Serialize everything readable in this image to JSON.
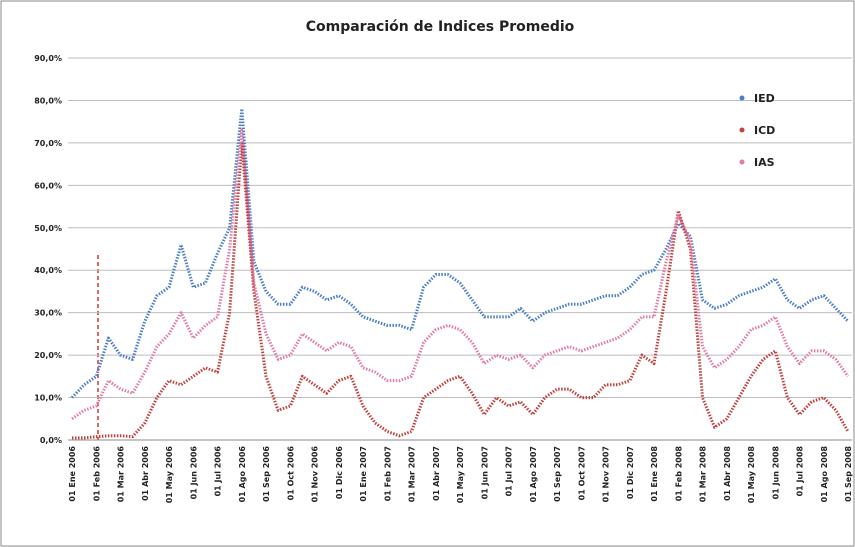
{
  "chart_data": {
    "type": "line",
    "title": "Comparación de Indices Promedio",
    "categories": [
      "01 Ene 2006",
      null,
      "01 Feb 2006",
      null,
      "01 Mar 2006",
      null,
      "01 Abr 2006",
      null,
      "01 May 2006",
      null,
      "01 Jun 2006",
      null,
      "01 Jul 2006",
      null,
      "01 Ago 2006",
      null,
      "01 Sep 2006",
      null,
      "01 Oct 2006",
      null,
      "01 Nov 2006",
      null,
      "01 Dic 2006",
      null,
      "01 Ene 2007",
      null,
      "01 Feb 2007",
      null,
      "01 Mar 2007",
      null,
      "01 Abr 2007",
      null,
      "01 May 2007",
      null,
      "01 Jun 2007",
      null,
      "01 Jul 2007",
      null,
      "01 Ago 2007",
      null,
      "01 Sep 2007",
      null,
      "01 Oct 2007",
      null,
      "01 Nov 2007",
      null,
      "01 Dic 2007",
      null,
      "01 Ene 2008",
      null,
      "01 Feb 2008",
      null,
      "01 Mar 2008",
      null,
      "01 Abr 2008",
      null,
      "01 May 2008",
      null,
      "01 Jun 2008",
      null,
      "01 Jul 2008",
      null,
      "01 Ago 2008",
      null,
      "01 Sep 2008"
    ],
    "series": [
      {
        "name": "IED",
        "color": "#4a7ec4",
        "values": [
          10,
          13,
          15,
          24,
          20,
          19,
          28,
          34,
          36,
          46,
          36,
          37,
          44,
          50,
          78,
          42,
          35,
          32,
          32,
          36,
          35,
          33,
          34,
          32,
          29,
          28,
          27,
          27,
          26,
          36,
          39,
          39,
          37,
          33,
          29,
          29,
          29,
          31,
          28,
          30,
          31,
          32,
          32,
          33,
          34,
          34,
          36,
          39,
          40,
          45,
          51,
          48,
          33,
          31,
          32,
          34,
          35,
          36,
          38,
          33,
          31,
          33,
          34,
          31,
          28
        ]
      },
      {
        "name": "ICD",
        "color": "#c0403c",
        "values": [
          0.5,
          0.5,
          0.8,
          1,
          1,
          0.8,
          4,
          10,
          14,
          13,
          15,
          17,
          16,
          30,
          70,
          35,
          15,
          7,
          8,
          15,
          13,
          11,
          14,
          15,
          8,
          4,
          2,
          1,
          2,
          10,
          12,
          14,
          15,
          11,
          6,
          10,
          8,
          9,
          6,
          10,
          12,
          12,
          10,
          10,
          13,
          13,
          14,
          20,
          18,
          35,
          54,
          45,
          10,
          3,
          5,
          10,
          15,
          19,
          21,
          10,
          6,
          9,
          10,
          7,
          2
        ]
      },
      {
        "name": "IAS",
        "color": "#e07aa8",
        "values": [
          5,
          7,
          8,
          14,
          12,
          11,
          16,
          22,
          25,
          30,
          24,
          27,
          29,
          45,
          73,
          37,
          25,
          19,
          20,
          25,
          23,
          21,
          23,
          22,
          17,
          16,
          14,
          14,
          15,
          23,
          26,
          27,
          26,
          23,
          18,
          20,
          19,
          20,
          17,
          20,
          21,
          22,
          21,
          22,
          23,
          24,
          26,
          29,
          29,
          42,
          53,
          47,
          22,
          17,
          19,
          22,
          26,
          27,
          29,
          22,
          18,
          21,
          21,
          19,
          15
        ]
      }
    ],
    "ylim": [
      0,
      90
    ],
    "yticks": [
      {
        "value": 0,
        "label": "0,0%"
      },
      {
        "value": 10,
        "label": "10,0%"
      },
      {
        "value": 20,
        "label": "20,0%"
      },
      {
        "value": 30,
        "label": "30,0%"
      },
      {
        "value": 40,
        "label": "40,0%"
      },
      {
        "value": 50,
        "label": "50,0%"
      },
      {
        "value": 60,
        "label": "60,0%"
      },
      {
        "value": 70,
        "label": "70,0%"
      },
      {
        "value": 80,
        "label": "80,0%"
      },
      {
        "value": 90,
        "label": "90,0%"
      }
    ],
    "grid": true
  }
}
